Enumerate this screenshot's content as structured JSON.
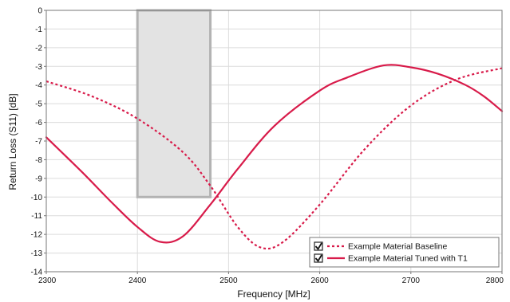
{
  "chart_data": {
    "type": "line",
    "xlabel": "Frequency [MHz]",
    "ylabel": "Return Loss (S11) [dB]",
    "xlim": [
      2300,
      2800
    ],
    "ylim": [
      -14,
      0
    ],
    "x_ticks": [
      2300,
      2400,
      2500,
      2600,
      2700,
      2800
    ],
    "y_ticks": [
      0,
      -1,
      -2,
      -3,
      -4,
      -5,
      -6,
      -7,
      -8,
      -9,
      -10,
      -11,
      -12,
      -13,
      -14
    ],
    "x_tick_labels": [
      "2300",
      "2400",
      "2500",
      "2600",
      "2700",
      "2800"
    ],
    "y_tick_labels": [
      "0",
      "-1",
      "-2",
      "-3",
      "-4",
      "-5",
      "-6",
      "-7",
      "-8",
      "-9",
      "-10",
      "-11",
      "-12",
      "-13",
      "-14"
    ],
    "grid": true,
    "legend_position": "bottom-right",
    "highlight_region": {
      "x": [
        2400,
        2480
      ],
      "y": [
        -10,
        0
      ],
      "color": "#e3e3e3",
      "border": "#b3b3b3"
    },
    "series": [
      {
        "name": "Example Material Baseline",
        "style": "dashed",
        "color": "#d81b4a",
        "checked": true,
        "x": [
          2300,
          2350,
          2400,
          2450,
          2480,
          2510,
          2535,
          2560,
          2600,
          2650,
          2700,
          2750,
          2800
        ],
        "y": [
          -3.8,
          -4.6,
          -5.8,
          -7.6,
          -9.4,
          -11.6,
          -12.7,
          -12.4,
          -10.4,
          -7.4,
          -5.1,
          -3.7,
          -3.1
        ]
      },
      {
        "name": "Example Material Tuned with T1",
        "style": "solid",
        "color": "#d81b4a",
        "checked": true,
        "x": [
          2300,
          2340,
          2370,
          2400,
          2425,
          2450,
          2480,
          2510,
          2550,
          2600,
          2630,
          2670,
          2700,
          2730,
          2760,
          2780,
          2800
        ],
        "y": [
          -6.8,
          -8.7,
          -10.2,
          -11.6,
          -12.4,
          -12.1,
          -10.4,
          -8.5,
          -6.2,
          -4.3,
          -3.6,
          -2.95,
          -3.05,
          -3.4,
          -4.0,
          -4.6,
          -5.4
        ]
      }
    ]
  }
}
